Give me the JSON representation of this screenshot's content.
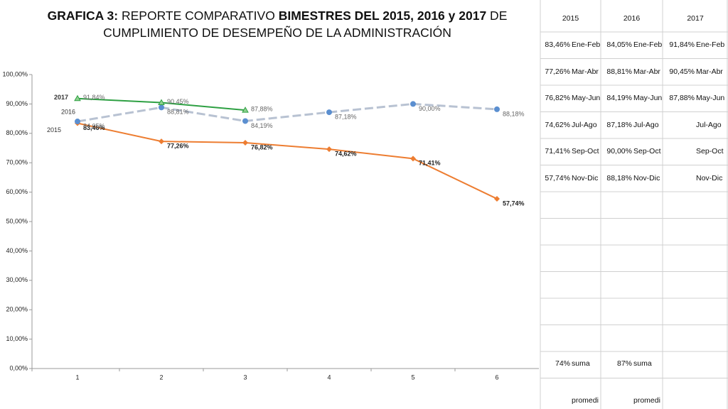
{
  "chart_data": {
    "type": "line",
    "title": [
      {
        "text": "GRAFICA 3:",
        "bold": true
      },
      {
        "text": " REPORTE COMPARATIVO ",
        "bold": false
      },
      {
        "text": "BIMESTRES DEL 2015, 2016 y 2017",
        "bold": true
      },
      {
        "text": " DE CUMPLIMIENTO DE DESEMPEÑO DE LA ADMINISTRACIÓN",
        "bold": false
      }
    ],
    "categories": [
      "1",
      "2",
      "3",
      "4",
      "5",
      "6"
    ],
    "ylim": [
      0,
      100
    ],
    "yticks": [
      {
        "value": 0,
        "label": "0,00%"
      },
      {
        "value": 10,
        "label": "10,00%"
      },
      {
        "value": 20,
        "label": "20,00%"
      },
      {
        "value": 30,
        "label": "30,00%"
      },
      {
        "value": 40,
        "label": "40,00%"
      },
      {
        "value": 50,
        "label": "50,00%"
      },
      {
        "value": 60,
        "label": "60,00%"
      },
      {
        "value": 70,
        "label": "70,00%"
      },
      {
        "value": 80,
        "label": "80,00%"
      },
      {
        "value": 90,
        "label": "90,00%"
      },
      {
        "value": 100,
        "label": "100,00%"
      }
    ],
    "grid": false,
    "series": [
      {
        "name": "2015",
        "color": "#ed7d31",
        "marker": "diamond",
        "marker_color": "#ed7d31",
        "dashed": false,
        "bold_labels": true,
        "values": [
          83.46,
          77.26,
          76.82,
          74.62,
          71.41,
          57.74
        ],
        "value_labels": [
          "83,46%",
          "77,26%",
          "76,82%",
          "74,62%",
          "71,41%",
          "57,74%"
        ]
      },
      {
        "name": "2016",
        "color": "#b8c2d2",
        "marker": "circle",
        "marker_color": "#5b8fd0",
        "dashed": true,
        "bold_labels": false,
        "values": [
          84.05,
          88.81,
          84.19,
          87.18,
          90.0,
          88.18
        ],
        "value_labels": [
          "84,05%",
          "88,81%",
          "84,19%",
          "87,18%",
          "90,00%",
          "88,18%"
        ]
      },
      {
        "name": "2017",
        "color": "#2ea043",
        "marker": "triangle",
        "marker_color": "#8fd18f",
        "dashed": false,
        "bold_labels": false,
        "values": [
          91.84,
          90.45,
          87.88,
          null,
          null,
          null
        ],
        "value_labels": [
          "91,84%",
          "90,45%",
          "87,88%",
          null,
          null,
          null
        ]
      }
    ]
  },
  "table": {
    "header": [
      "2015",
      "2016",
      "2017"
    ],
    "rows": [
      [
        "83,46%",
        "Ene-Feb",
        "84,05%",
        "Ene-Feb",
        "91,84%",
        "Ene-Feb"
      ],
      [
        "77,26%",
        "Mar-Abr",
        "88,81%",
        "Mar-Abr",
        "90,45%",
        "Mar-Abr"
      ],
      [
        "76,82%",
        "May-Jun",
        "84,19%",
        "May-Jun",
        "87,88%",
        "May-Jun"
      ],
      [
        "74,62%",
        "Jul-Ago",
        "87,18%",
        "Jul-Ago",
        null,
        "Jul-Ago"
      ],
      [
        "71,41%",
        "Sep-Oct",
        "90,00%",
        "Sep-Oct",
        null,
        "Sep-Oct"
      ],
      [
        "57,74%",
        "Nov-Dic",
        "88,18%",
        "Nov-Dic",
        null,
        "Nov-Dic"
      ]
    ],
    "summary": [
      [
        "74%",
        "suma",
        "87%",
        "suma",
        null,
        null
      ],
      [
        null,
        "promedi",
        null,
        "promedi",
        null,
        null
      ]
    ]
  }
}
